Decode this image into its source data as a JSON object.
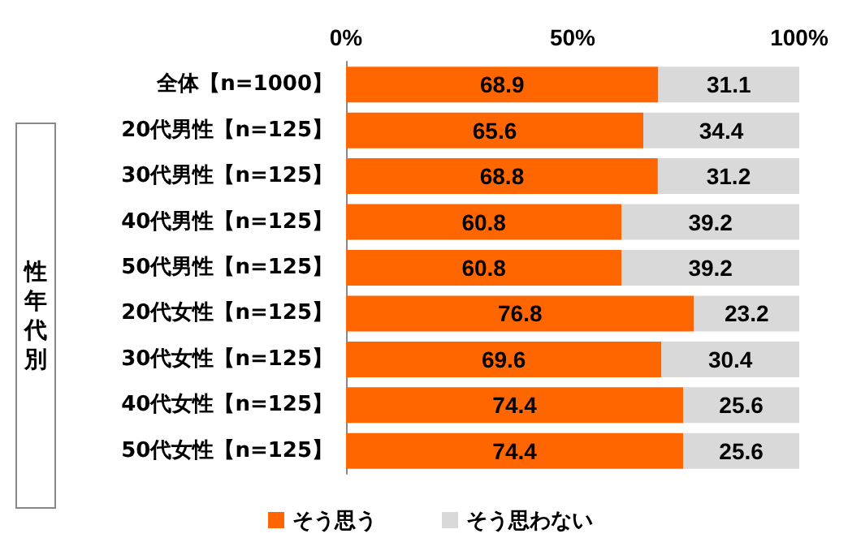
{
  "chart_data": {
    "type": "bar",
    "orientation": "horizontal",
    "stacked": true,
    "data_labels": true,
    "legend": "bottom",
    "grid": false,
    "categories": [
      "全体【n=1000】",
      "20代男性【n=125】",
      "30代男性【n=125】",
      "40代男性【n=125】",
      "50代男性【n=125】",
      "20代女性【n=125】",
      "30代女性【n=125】",
      "40代女性【n=125】",
      "50代女性【n=125】"
    ],
    "series": [
      {
        "name": "そう思う",
        "color": "#ff6600",
        "values": [
          68.9,
          65.6,
          68.8,
          60.8,
          60.8,
          76.8,
          69.6,
          74.4,
          74.4
        ]
      },
      {
        "name": "そう思わない",
        "color": "#d9d9d9",
        "values": [
          31.1,
          34.4,
          31.2,
          39.2,
          39.2,
          23.2,
          30.4,
          25.6,
          25.6
        ]
      }
    ],
    "xlim": [
      0,
      100
    ],
    "xticks": [
      {
        "value": 0,
        "label": "0%"
      },
      {
        "value": 50,
        "label": "50%"
      },
      {
        "value": 100,
        "label": "100%"
      }
    ],
    "annotations": [
      "性年代別"
    ]
  }
}
